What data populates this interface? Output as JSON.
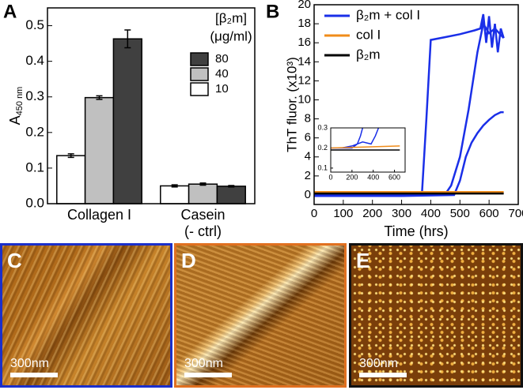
{
  "chart_data": [
    {
      "type": "bar",
      "panel_label": "A",
      "ylabel": "A",
      "ylabel_sub": "450 nm",
      "legend_title": "[β₂m]",
      "legend_unit": "(μg/ml)",
      "categories": [
        "Collagen I",
        "Casein\n(- ctrl)"
      ],
      "series": [
        {
          "name": "10",
          "color": "#ffffff",
          "values": [
            0.135,
            0.05
          ],
          "errors": [
            0.005,
            0.003
          ]
        },
        {
          "name": "40",
          "color": "#c0c0c0",
          "values": [
            0.298,
            0.055
          ],
          "errors": [
            0.005,
            0.003
          ]
        },
        {
          "name": "80",
          "color": "#404040",
          "values": [
            0.463,
            0.049
          ],
          "errors": [
            0.025,
            0.002
          ]
        }
      ],
      "ylim": [
        0,
        0.55
      ],
      "yticks": [
        {
          "value": 0,
          "label": "0.0"
        },
        0.1,
        0.2,
        0.3,
        0.4,
        0.5
      ]
    },
    {
      "type": "line",
      "panel_label": "B",
      "xlabel": "Time (hrs)",
      "ylabel": "ThT fluor. (x10³)",
      "series": [
        {
          "name": "β₂m + col I",
          "color": "#1a2fe8",
          "x": [
            0,
            200,
            370,
            385,
            400,
            450,
            500,
            550,
            570,
            580,
            590,
            600,
            610,
            620,
            630,
            640,
            650,
            null,
            0,
            300,
            450,
            470,
            500,
            530,
            560,
            580,
            600,
            620,
            650,
            null,
            0,
            300,
            480,
            500,
            520,
            540,
            560,
            580,
            600,
            620,
            640,
            650
          ],
          "values": [
            0.2,
            0.2,
            0.3,
            8,
            16.3,
            16.6,
            16.9,
            17.3,
            17.5,
            19,
            16,
            18.8,
            15.5,
            18,
            15,
            17.5,
            16.5,
            null,
            0,
            0,
            0.1,
            1,
            4,
            9,
            15,
            18,
            17,
            17.5,
            16.5,
            null,
            -0.1,
            -0.1,
            0,
            1.5,
            4,
            5.5,
            6.5,
            7.3,
            7.9,
            8.4,
            8.7,
            8.7
          ]
        },
        {
          "name": "col I",
          "color": "#f08c1a",
          "x": [
            0,
            650
          ],
          "values": [
            0.3,
            0.3
          ]
        },
        {
          "name": "β₂m",
          "color": "#000000",
          "x": [
            0,
            650
          ],
          "values": [
            0.15,
            0.15
          ]
        }
      ],
      "xlim": [
        0,
        700
      ],
      "xticks": [
        0,
        100,
        200,
        300,
        400,
        500,
        600,
        700
      ],
      "ylim": [
        -1,
        20
      ],
      "yticks": [
        0,
        2,
        4,
        6,
        8,
        10,
        12,
        14,
        16,
        18,
        20
      ]
    },
    {
      "type": "line",
      "series": [
        {
          "name": "β₂m + col I",
          "color": "#1a2fe8",
          "x": [
            0,
            100,
            200,
            300,
            380,
            420,
            450,
            null,
            0,
            200,
            250,
            280,
            300
          ],
          "values": [
            0.2,
            0.2,
            0.21,
            0.23,
            0.22,
            0.26,
            0.3,
            null,
            0.2,
            0.2,
            0.22,
            0.26,
            0.3
          ]
        },
        {
          "name": "col I",
          "color": "#f08c1a",
          "x": [
            0,
            650
          ],
          "values": [
            0.2,
            0.21
          ]
        },
        {
          "name": "β₂m",
          "color": "#000000",
          "x": [
            0,
            650
          ],
          "values": [
            0.19,
            0.19
          ]
        }
      ],
      "xlim": [
        0,
        700
      ],
      "xticks": [
        0,
        200,
        400,
        600
      ],
      "ylim": [
        0.08,
        0.3
      ],
      "yticks": [
        0.1,
        0.2,
        0.3
      ]
    }
  ],
  "images": [
    {
      "label": "C",
      "scale_bar": "300nm"
    },
    {
      "label": "D",
      "scale_bar": "300nm"
    },
    {
      "label": "E",
      "scale_bar": "300nm"
    }
  ]
}
